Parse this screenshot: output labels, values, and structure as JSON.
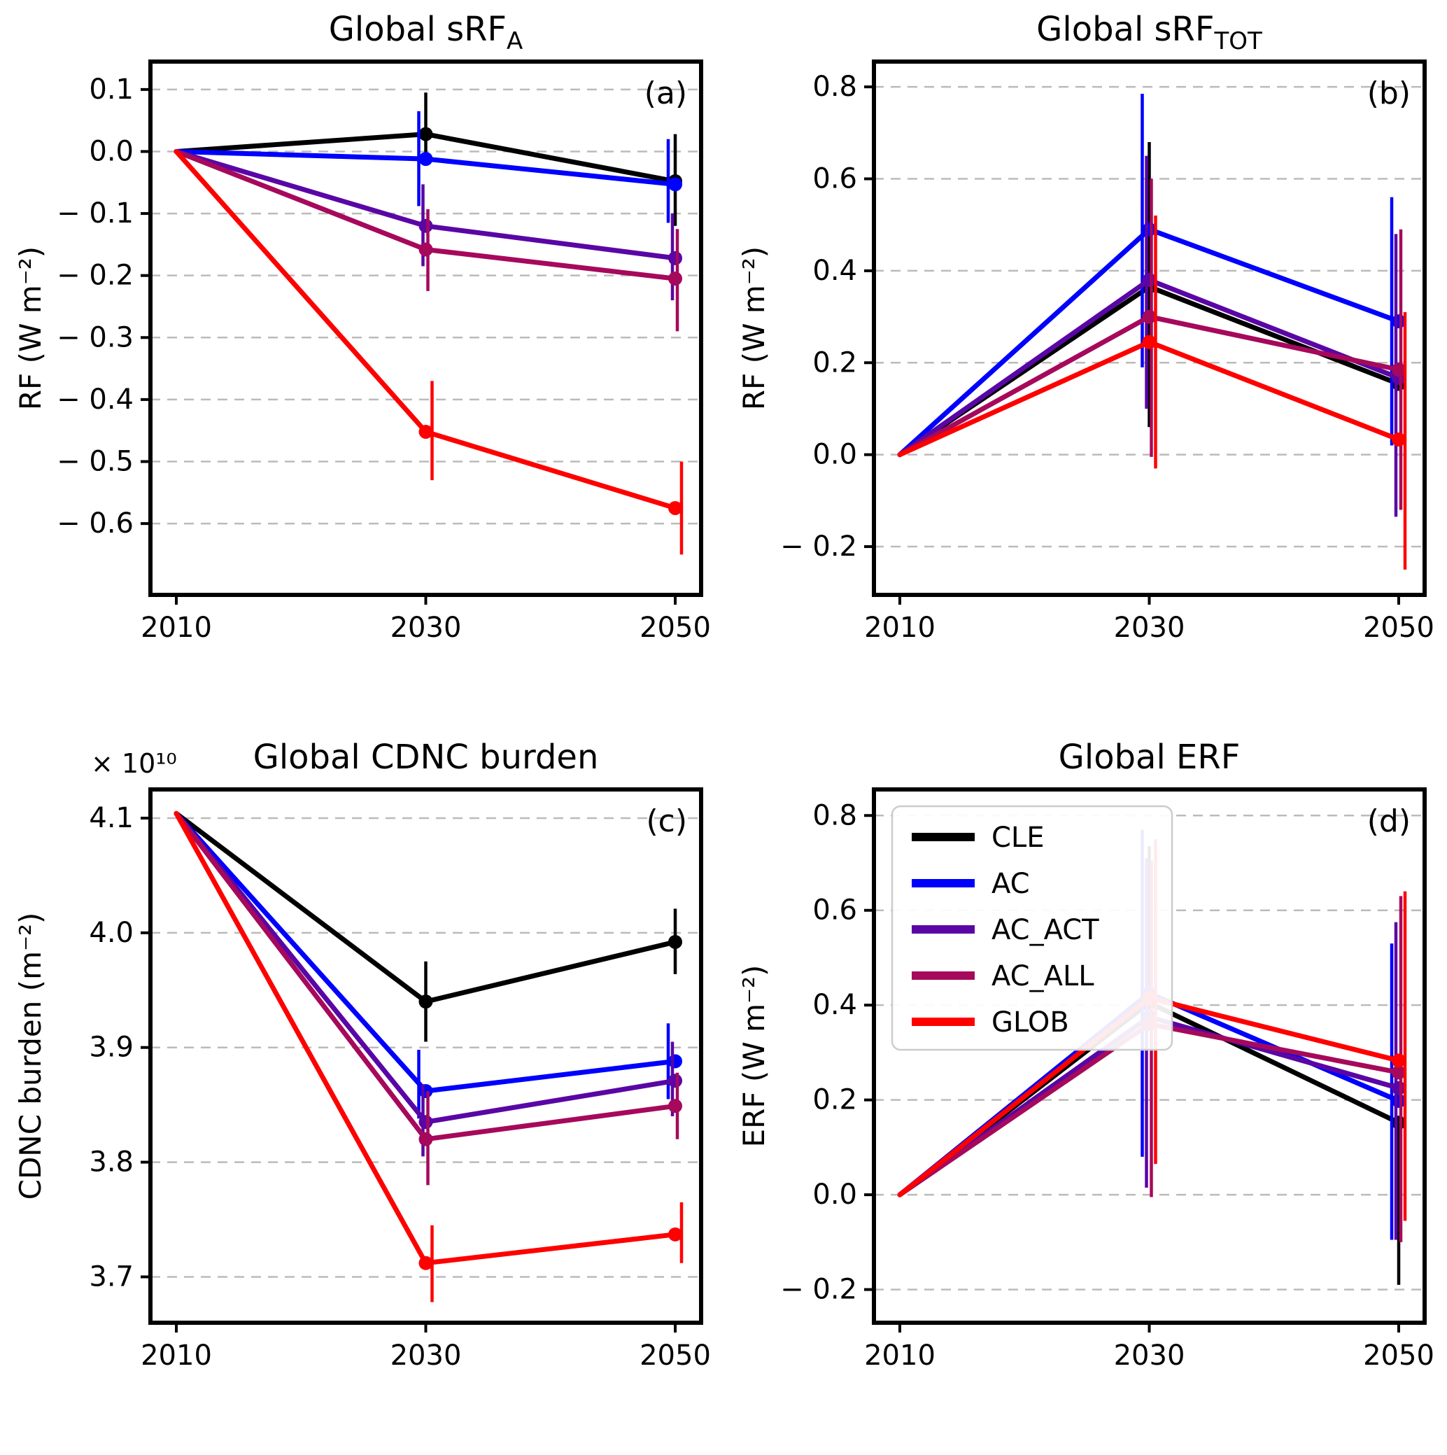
{
  "figure": {
    "background": "#ffffff",
    "series_colors": {
      "CLE": "#000000",
      "AC": "#0000ff",
      "AC_ACT": "#5a06a6",
      "AC_ALL": "#a6095c",
      "GLOB": "#ff0000"
    },
    "gridline_color": "#bbbbbb",
    "legend_border_color": "#cccccc"
  },
  "legend": {
    "position": "upper-left of panel (d)",
    "items": [
      {
        "label": "CLE",
        "color": "#000000"
      },
      {
        "label": "AC",
        "color": "#0000ff"
      },
      {
        "label": "AC_ACT",
        "color": "#5a06a6"
      },
      {
        "label": "AC_ALL",
        "color": "#a6095c"
      },
      {
        "label": "GLOB",
        "color": "#ff0000"
      }
    ]
  },
  "chart_data": [
    {
      "id": "a",
      "type": "line",
      "panel_label": "(a)",
      "title_main": "Global sRF",
      "title_sub": "A",
      "offset_text": null,
      "ylabel": "RF (W m⁻²)",
      "x": [
        2010,
        2030,
        2050
      ],
      "xtick_labels": [
        "2010",
        "2030",
        "2050"
      ],
      "ylim": [
        -0.715,
        0.145
      ],
      "ytick_values": [
        0.1,
        0.0,
        -0.1,
        -0.2,
        -0.3,
        -0.4,
        -0.5,
        -0.6
      ],
      "ytick_labels": [
        "0.1",
        "0.0",
        "− 0.1",
        "− 0.2",
        "− 0.3",
        "− 0.4",
        "− 0.5",
        "− 0.6"
      ],
      "grid": true,
      "legend": false,
      "series": [
        {
          "name": "CLE",
          "color": "#000000",
          "values": [
            0,
            0.028,
            -0.048
          ],
          "err_lo": [
            null,
            -0.02,
            -0.12
          ],
          "err_hi": [
            null,
            0.095,
            0.028
          ]
        },
        {
          "name": "AC",
          "color": "#0000ff",
          "values": [
            0,
            -0.012,
            -0.053
          ],
          "err_lo": [
            null,
            -0.088,
            -0.115
          ],
          "err_hi": [
            null,
            0.065,
            0.02
          ]
        },
        {
          "name": "AC_ACT",
          "color": "#5a06a6",
          "values": [
            0,
            -0.12,
            -0.172
          ],
          "err_lo": [
            null,
            -0.185,
            -0.24
          ],
          "err_hi": [
            null,
            -0.053,
            -0.1
          ]
        },
        {
          "name": "AC_ALL",
          "color": "#a6095c",
          "values": [
            0,
            -0.158,
            -0.205
          ],
          "err_lo": [
            null,
            -0.225,
            -0.29
          ],
          "err_hi": [
            null,
            -0.093,
            -0.125
          ]
        },
        {
          "name": "GLOB",
          "color": "#ff0000",
          "values": [
            0,
            -0.452,
            -0.575
          ],
          "err_lo": [
            null,
            -0.53,
            -0.65
          ],
          "err_hi": [
            null,
            -0.37,
            -0.5
          ]
        }
      ]
    },
    {
      "id": "b",
      "type": "line",
      "panel_label": "(b)",
      "title_main": "Global sRF",
      "title_sub": "TOT",
      "offset_text": null,
      "ylabel": "RF (W m⁻²)",
      "x": [
        2010,
        2030,
        2050
      ],
      "xtick_labels": [
        "2010",
        "2030",
        "2050"
      ],
      "ylim": [
        -0.305,
        0.855
      ],
      "ytick_values": [
        0.8,
        0.6,
        0.4,
        0.2,
        0.0,
        -0.2
      ],
      "ytick_labels": [
        "0.8",
        "0.6",
        "0.4",
        "0.2",
        "0.0",
        "− 0.2"
      ],
      "grid": true,
      "legend": false,
      "series": [
        {
          "name": "CLE",
          "color": "#000000",
          "values": [
            0,
            0.365,
            0.154
          ],
          "err_lo": [
            null,
            0.06,
            null
          ],
          "err_hi": [
            null,
            0.68,
            null
          ]
        },
        {
          "name": "AC",
          "color": "#0000ff",
          "values": [
            0,
            0.49,
            0.29
          ],
          "err_lo": [
            null,
            0.19,
            0.02
          ],
          "err_hi": [
            null,
            0.785,
            0.56
          ]
        },
        {
          "name": "AC_ACT",
          "color": "#5a06a6",
          "values": [
            0,
            0.38,
            0.167
          ],
          "err_lo": [
            null,
            0.1,
            -0.135
          ],
          "err_hi": [
            null,
            0.65,
            0.48
          ]
        },
        {
          "name": "AC_ALL",
          "color": "#a6095c",
          "values": [
            0,
            0.3,
            0.185
          ],
          "err_lo": [
            null,
            -0.005,
            -0.12
          ],
          "err_hi": [
            null,
            0.6,
            0.49
          ]
        },
        {
          "name": "GLOB",
          "color": "#ff0000",
          "values": [
            0,
            0.245,
            0.033
          ],
          "err_lo": [
            null,
            -0.03,
            -0.25
          ],
          "err_hi": [
            null,
            0.52,
            0.31
          ]
        }
      ]
    },
    {
      "id": "c",
      "type": "line",
      "panel_label": "(c)",
      "title_main": "Global CDNC burden",
      "title_sub": null,
      "offset_text": "× 10¹⁰",
      "ylabel": "CDNC burden (m⁻²)",
      "x": [
        2010,
        2030,
        2050
      ],
      "xtick_labels": [
        "2010",
        "2030",
        "2050"
      ],
      "ylim": [
        3.66,
        4.125
      ],
      "ytick_values": [
        4.1,
        4.0,
        3.9,
        3.8,
        3.7
      ],
      "ytick_labels": [
        "4.1",
        "4.0",
        "3.9",
        "3.8",
        "3.7"
      ],
      "grid": true,
      "legend": false,
      "series": [
        {
          "name": "CLE",
          "color": "#000000",
          "values": [
            4.104,
            3.94,
            3.992
          ],
          "err_lo": [
            null,
            3.905,
            3.964
          ],
          "err_hi": [
            null,
            3.975,
            4.021
          ]
        },
        {
          "name": "AC",
          "color": "#0000ff",
          "values": [
            4.104,
            3.862,
            3.888
          ],
          "err_lo": [
            null,
            3.838,
            3.855
          ],
          "err_hi": [
            null,
            3.898,
            3.921
          ]
        },
        {
          "name": "AC_ACT",
          "color": "#5a06a6",
          "values": [
            4.104,
            3.835,
            3.871
          ],
          "err_lo": [
            null,
            3.805,
            3.84
          ],
          "err_hi": [
            null,
            3.868,
            3.905
          ]
        },
        {
          "name": "AC_ALL",
          "color": "#a6095c",
          "values": [
            4.104,
            3.82,
            3.849
          ],
          "err_lo": [
            null,
            3.78,
            3.82
          ],
          "err_hi": [
            null,
            3.862,
            3.878
          ]
        },
        {
          "name": "GLOB",
          "color": "#ff0000",
          "values": [
            4.104,
            3.712,
            3.737
          ],
          "err_lo": [
            null,
            3.678,
            3.712
          ],
          "err_hi": [
            null,
            3.745,
            3.765
          ]
        }
      ]
    },
    {
      "id": "d",
      "type": "line",
      "panel_label": "(d)",
      "title_main": "Global ERF",
      "title_sub": null,
      "offset_text": null,
      "ylabel": "ERF (W m⁻²)",
      "x": [
        2010,
        2030,
        2050
      ],
      "xtick_labels": [
        "2010",
        "2030",
        "2050"
      ],
      "ylim": [
        -0.27,
        0.855
      ],
      "ytick_values": [
        0.8,
        0.6,
        0.4,
        0.2,
        0.0,
        -0.2
      ],
      "ytick_labels": [
        "0.8",
        "0.6",
        "0.4",
        "0.2",
        "0.0",
        "− 0.2"
      ],
      "grid": true,
      "legend": true,
      "series": [
        {
          "name": "CLE",
          "color": "#000000",
          "values": [
            0,
            0.405,
            0.152
          ],
          "err_lo": [
            null,
            null,
            -0.19
          ],
          "err_hi": [
            null,
            0.735,
            null
          ]
        },
        {
          "name": "AC",
          "color": "#0000ff",
          "values": [
            0,
            0.425,
            0.198
          ],
          "err_lo": [
            null,
            0.08,
            -0.095
          ],
          "err_hi": [
            null,
            0.77,
            0.53
          ]
        },
        {
          "name": "AC_ACT",
          "color": "#5a06a6",
          "values": [
            0,
            0.375,
            0.225
          ],
          "err_lo": [
            null,
            0.015,
            -0.095
          ],
          "err_hi": [
            null,
            0.71,
            0.575
          ]
        },
        {
          "name": "AC_ALL",
          "color": "#a6095c",
          "values": [
            0,
            0.36,
            0.258
          ],
          "err_lo": [
            null,
            -0.005,
            -0.1
          ],
          "err_hi": [
            null,
            0.705,
            0.63
          ]
        },
        {
          "name": "GLOB",
          "color": "#ff0000",
          "values": [
            0,
            0.415,
            0.283
          ],
          "err_lo": [
            null,
            0.065,
            -0.055
          ],
          "err_hi": [
            null,
            0.75,
            0.64
          ]
        }
      ]
    }
  ]
}
